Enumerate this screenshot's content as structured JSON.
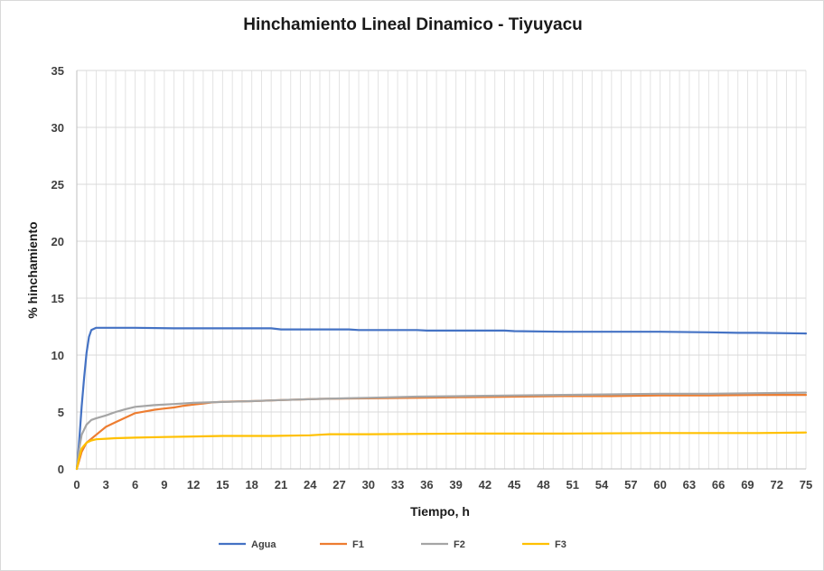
{
  "chart_data": {
    "type": "line",
    "title": "Hinchamiento Lineal Dinamico - Tiyuyacu",
    "xlabel": "Tiempo, h",
    "ylabel": "% hinchamiento",
    "xlim": [
      0,
      75
    ],
    "ylim": [
      0,
      35
    ],
    "x_ticks": [
      0,
      3,
      6,
      9,
      12,
      15,
      18,
      21,
      24,
      27,
      30,
      33,
      36,
      39,
      42,
      45,
      48,
      51,
      54,
      57,
      60,
      63,
      66,
      69,
      72,
      75
    ],
    "y_ticks": [
      0,
      5,
      10,
      15,
      20,
      25,
      30,
      35
    ],
    "grid": true,
    "minor_x_step": 1,
    "legend_position": "bottom",
    "series": [
      {
        "name": "Agua",
        "color": "#4472C4",
        "x": [
          0,
          0.25,
          0.5,
          0.75,
          1,
          1.25,
          1.5,
          2,
          3,
          6,
          10,
          15,
          20,
          21,
          25,
          28,
          29,
          35,
          36,
          44,
          45,
          50,
          55,
          60,
          65,
          68,
          70,
          75
        ],
        "y": [
          0,
          2.5,
          5.5,
          8.0,
          10.2,
          11.6,
          12.2,
          12.4,
          12.4,
          12.4,
          12.35,
          12.35,
          12.35,
          12.25,
          12.25,
          12.25,
          12.2,
          12.2,
          12.15,
          12.15,
          12.1,
          12.05,
          12.05,
          12.05,
          12.0,
          11.95,
          11.95,
          11.9
        ]
      },
      {
        "name": "F1",
        "color": "#ED7D31",
        "x": [
          0,
          0.5,
          1,
          2,
          3,
          4,
          5,
          6,
          7,
          8,
          9,
          10,
          11,
          12,
          13,
          14,
          15,
          18,
          21,
          25,
          30,
          35,
          40,
          45,
          50,
          55,
          60,
          65,
          70,
          75
        ],
        "y": [
          0,
          1.5,
          2.3,
          3.0,
          3.7,
          4.1,
          4.5,
          4.9,
          5.05,
          5.2,
          5.3,
          5.4,
          5.55,
          5.65,
          5.75,
          5.85,
          5.9,
          5.95,
          6.05,
          6.15,
          6.2,
          6.25,
          6.3,
          6.35,
          6.4,
          6.4,
          6.45,
          6.45,
          6.5,
          6.5
        ]
      },
      {
        "name": "F2",
        "color": "#A5A5A5",
        "x": [
          0,
          0.25,
          0.5,
          1,
          1.5,
          2,
          3,
          4,
          5,
          6,
          8,
          10,
          12,
          15,
          18,
          21,
          25,
          30,
          35,
          40,
          45,
          50,
          55,
          60,
          65,
          70,
          75
        ],
        "y": [
          0,
          1.8,
          3.0,
          3.9,
          4.3,
          4.45,
          4.7,
          5.0,
          5.25,
          5.45,
          5.6,
          5.7,
          5.8,
          5.88,
          5.95,
          6.05,
          6.15,
          6.25,
          6.35,
          6.4,
          6.45,
          6.5,
          6.55,
          6.6,
          6.6,
          6.65,
          6.7
        ]
      },
      {
        "name": "F3",
        "color": "#FFC000",
        "x": [
          0,
          0.25,
          0.5,
          1,
          1.5,
          2,
          3,
          4,
          6,
          9,
          12,
          15,
          20,
          24,
          25,
          26,
          30,
          40,
          50,
          60,
          70,
          75
        ],
        "y": [
          0,
          1.0,
          1.8,
          2.3,
          2.5,
          2.6,
          2.65,
          2.7,
          2.75,
          2.8,
          2.85,
          2.9,
          2.9,
          2.95,
          3.0,
          3.05,
          3.05,
          3.1,
          3.1,
          3.15,
          3.15,
          3.2
        ]
      }
    ]
  }
}
